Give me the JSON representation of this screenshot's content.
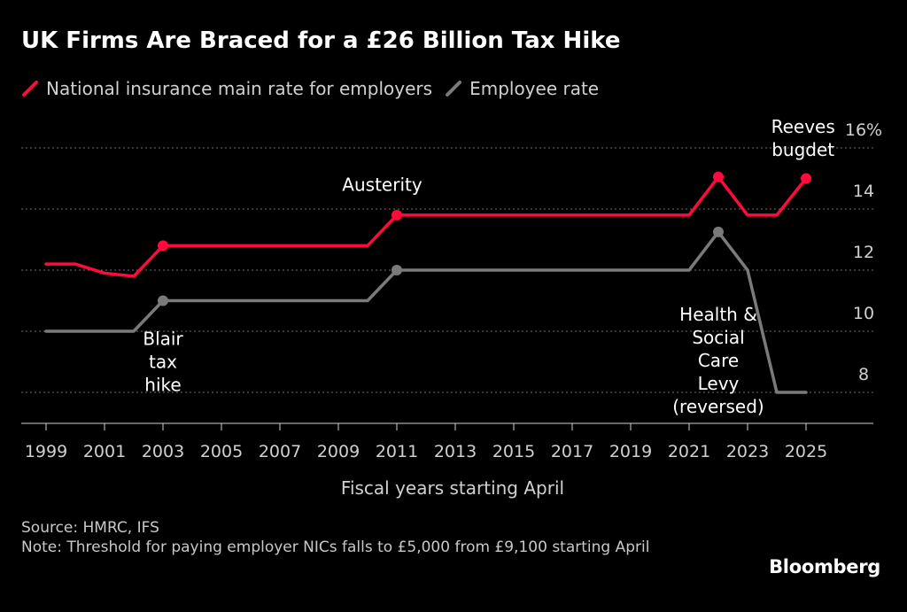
{
  "title": "UK Firms Are Braced for a £26 Billion Tax Hike",
  "footer": {
    "source": "Source: HMRC, IFS",
    "note": "Note: Threshold for paying employer NICs falls to £5,000 from £9,100 starting April"
  },
  "brand": "Bloomberg",
  "colors": {
    "employer": "#ff0a3c",
    "employee": "#7a7a7a",
    "background": "#000000"
  },
  "chart_data": {
    "type": "line",
    "title": "UK Firms Are Braced for a £26 Billion Tax Hike",
    "xlabel": "Fiscal years starting April",
    "ylabel": "",
    "xlim": [
      1998.5,
      2026.5
    ],
    "ylim": [
      7,
      16
    ],
    "x_ticks": [
      1999,
      2001,
      2003,
      2005,
      2007,
      2009,
      2011,
      2013,
      2015,
      2017,
      2019,
      2021,
      2023,
      2025
    ],
    "y_ticks": [
      {
        "value": 8,
        "label": "8"
      },
      {
        "value": 10,
        "label": "10"
      },
      {
        "value": 12,
        "label": "12"
      },
      {
        "value": 14,
        "label": "14"
      },
      {
        "value": 16,
        "label": "16%"
      }
    ],
    "grid": true,
    "series": [
      {
        "name": "National insurance main rate for employers",
        "color": "#ff0a3c",
        "points": [
          [
            1999,
            12.2
          ],
          [
            2000,
            12.2
          ],
          [
            2001,
            11.9
          ],
          [
            2002,
            11.8
          ],
          [
            2003,
            12.8
          ],
          [
            2010,
            12.8
          ],
          [
            2011,
            13.8
          ],
          [
            2021,
            13.8
          ],
          [
            2022,
            15.05
          ],
          [
            2023,
            13.8
          ],
          [
            2024,
            13.8
          ],
          [
            2025,
            15.0
          ]
        ],
        "markers": [
          2003,
          2011,
          2022,
          2025
        ]
      },
      {
        "name": "Employee rate",
        "color": "#7a7a7a",
        "points": [
          [
            1999,
            10
          ],
          [
            2002,
            10
          ],
          [
            2003,
            11
          ],
          [
            2010,
            11
          ],
          [
            2011,
            12
          ],
          [
            2021,
            12
          ],
          [
            2022,
            13.25
          ],
          [
            2023,
            12
          ],
          [
            2024,
            8
          ],
          [
            2025,
            8
          ]
        ],
        "markers": [
          2003,
          2011,
          2022
        ]
      }
    ],
    "annotations": [
      {
        "lines": [
          "Blair",
          "tax",
          "hike"
        ],
        "x": 2003,
        "y": 9.55
      },
      {
        "lines": [
          "Austerity"
        ],
        "x": 2010.5,
        "y": 14.6
      },
      {
        "lines": [
          "Health &",
          "Social",
          "Care",
          "Levy",
          "(reversed)"
        ],
        "x": 2022,
        "y": 10.35
      },
      {
        "lines": [
          "Reeves",
          "bugdet"
        ],
        "x": 2024.9,
        "y": 16.5
      }
    ]
  }
}
